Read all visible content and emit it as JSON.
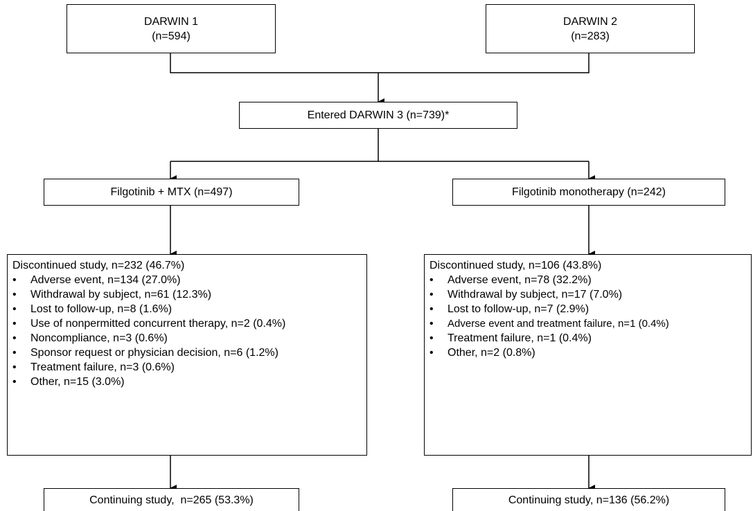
{
  "darwin1": {
    "title": "DARWIN 1",
    "n": "(n=594)"
  },
  "darwin2": {
    "title": "DARWIN 2",
    "n": "(n=283)"
  },
  "darwin3": {
    "label": "Entered DARWIN 3 (n=739)*"
  },
  "left_arm": {
    "label": "Filgotinib + MTX (n=497)",
    "discontinued": {
      "header": "Discontinued study, n=232 (46.7%)",
      "bullet": "•",
      "items": [
        "Adverse event, n=134 (27.0%)",
        "Withdrawal by subject, n=61 (12.3%)",
        "Lost to follow-up, n=8 (1.6%)",
        "Use of nonpermitted concurrent therapy, n=2 (0.4%)",
        "Noncompliance, n=3 (0.6%)",
        "Sponsor request or physician decision, n=6 (1.2%)",
        "Treatment failure, n=3 (0.6%)",
        "Other, n=15 (3.0%)"
      ]
    },
    "continuing": "Continuing study,  n=265 (53.3%)"
  },
  "right_arm": {
    "label": "Filgotinib monotherapy (n=242)",
    "discontinued": {
      "header": "Discontinued study, n=106 (43.8%)",
      "bullet": "•",
      "items": [
        "Adverse event, n=78 (32.2%)",
        "Withdrawal by subject, n=17 (7.0%)",
        "Lost to follow-up, n=7 (2.9%)",
        "Adverse event and treatment failure, n=1 (0.4%)",
        "Treatment failure, n=1 (0.4%)",
        "Other, n=2 (0.8%)"
      ]
    },
    "continuing": "Continuing study, n=136 (56.2%)"
  }
}
